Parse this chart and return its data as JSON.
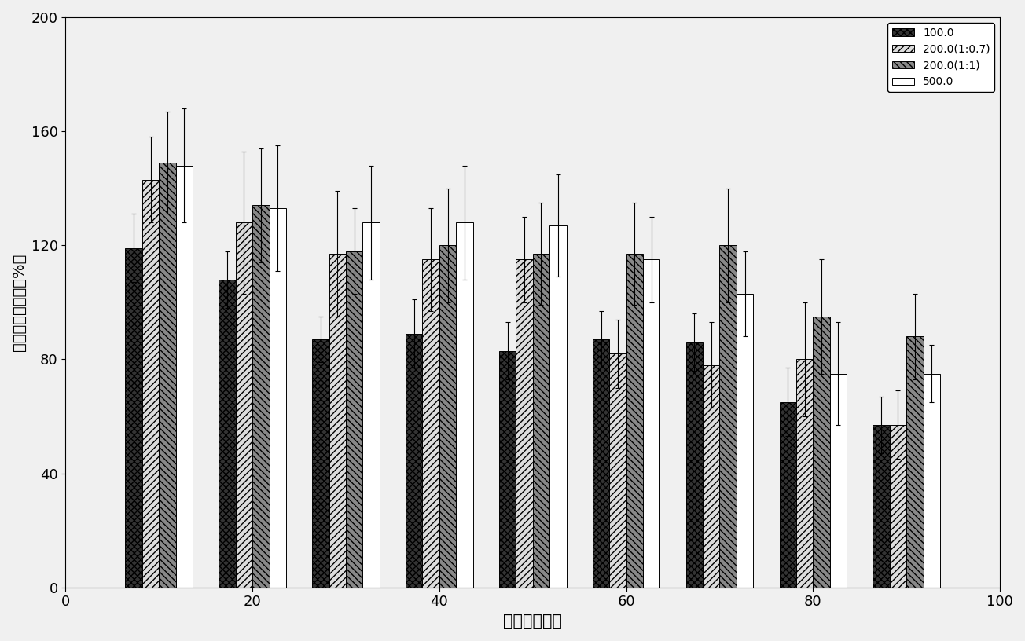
{
  "title": "",
  "xlabel": "时间（分钟）",
  "ylabel": "信号增强效果图（%）",
  "xlim": [
    0,
    100
  ],
  "ylim": [
    0,
    200
  ],
  "yticks": [
    0,
    40,
    80,
    120,
    160,
    200
  ],
  "xticks": [
    0,
    20,
    40,
    60,
    80,
    100
  ],
  "time_points": [
    10,
    20,
    30,
    40,
    50,
    60,
    70,
    80,
    90
  ],
  "series": [
    {
      "key": "100.0",
      "values": [
        119,
        108,
        87,
        89,
        83,
        87,
        86,
        65,
        57
      ],
      "errors": [
        12,
        10,
        8,
        12,
        10,
        10,
        10,
        12,
        10
      ],
      "hatch": "xxxx",
      "facecolor": "#333333",
      "edgecolor": "#000000",
      "label": "100.0"
    },
    {
      "key": "200.0(1:0.7)",
      "values": [
        143,
        128,
        117,
        115,
        115,
        82,
        78,
        80,
        57
      ],
      "errors": [
        15,
        25,
        22,
        18,
        15,
        12,
        15,
        20,
        12
      ],
      "hatch": "////",
      "facecolor": "#dddddd",
      "edgecolor": "#000000",
      "label": "200.0(1:0.7)"
    },
    {
      "key": "200.0(1:1)",
      "values": [
        149,
        134,
        118,
        120,
        117,
        117,
        120,
        95,
        88
      ],
      "errors": [
        18,
        20,
        15,
        20,
        18,
        18,
        20,
        20,
        15
      ],
      "hatch": "\\\\\\\\",
      "facecolor": "#888888",
      "edgecolor": "#000000",
      "label": "200.0(1:1)"
    },
    {
      "key": "500.0",
      "values": [
        148,
        133,
        128,
        128,
        127,
        115,
        103,
        75,
        75
      ],
      "errors": [
        20,
        22,
        20,
        20,
        18,
        15,
        15,
        18,
        10
      ],
      "hatch": "",
      "facecolor": "#ffffff",
      "edgecolor": "#000000",
      "label": "500.0"
    }
  ],
  "bar_width": 1.8,
  "legend_loc": "upper right",
  "background_color": "#f0f0f0",
  "fig_width": 13.04,
  "fig_height": 8.16,
  "dpi": 100
}
